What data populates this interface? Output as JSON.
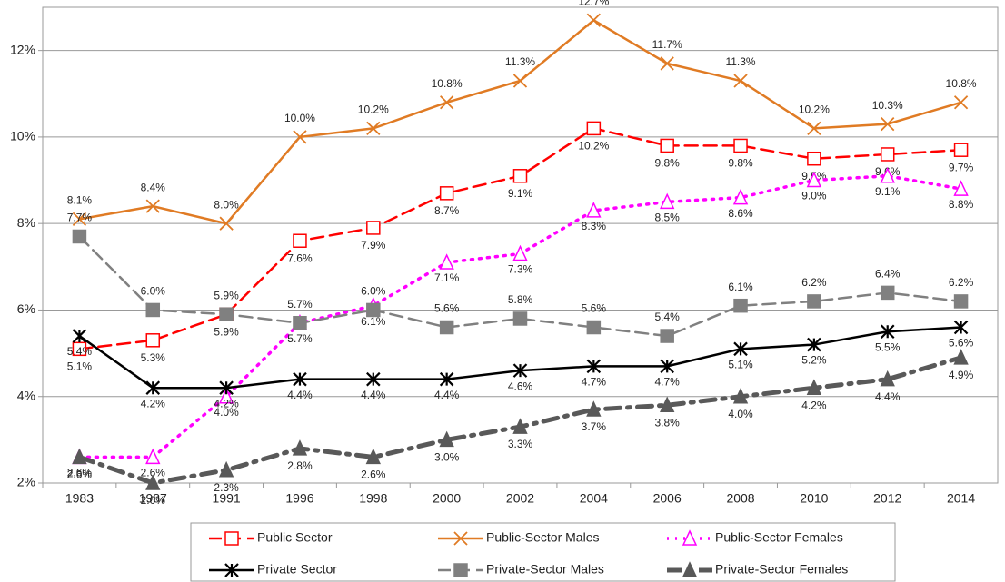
{
  "chart_data": {
    "type": "line",
    "categories": [
      "1983",
      "1987",
      "1991",
      "1996",
      "1998",
      "2000",
      "2002",
      "2004",
      "2006",
      "2008",
      "2010",
      "2012",
      "2014"
    ],
    "ylim": [
      2,
      13
    ],
    "yticks": [
      {
        "value": 2,
        "label": "2%"
      },
      {
        "value": 4,
        "label": "4%"
      },
      {
        "value": 6,
        "label": "6%"
      },
      {
        "value": 8,
        "label": "8%"
      },
      {
        "value": 10,
        "label": "10%"
      },
      {
        "value": 12,
        "label": "12%"
      }
    ],
    "grid": true,
    "legend": "bottom",
    "series": [
      {
        "name": "Public Sector",
        "color": "#ff0000",
        "line_style": "dashed",
        "marker": "open-square",
        "values": [
          5.1,
          5.3,
          5.9,
          7.6,
          7.9,
          8.7,
          9.1,
          10.2,
          9.8,
          9.8,
          9.5,
          9.6,
          9.7
        ],
        "value_labels": [
          "5.1%",
          "5.3%",
          "5.9%",
          "7.6%",
          "7.9%",
          "8.7%",
          "9.1%",
          "10.2%",
          "9.8%",
          "9.8%",
          "9.5%",
          "9.6%",
          "9.7%"
        ]
      },
      {
        "name": "Public-Sector Males",
        "color": "#e07b24",
        "line_style": "solid",
        "marker": "x",
        "values": [
          8.1,
          8.4,
          8.0,
          10.0,
          10.2,
          10.8,
          11.3,
          12.7,
          11.7,
          11.3,
          10.2,
          10.3,
          10.8
        ],
        "value_labels": [
          "8.1%",
          "8.4%",
          "8.0%",
          "10.0%",
          "10.2%",
          "10.8%",
          "11.3%",
          "12.7%",
          "11.7%",
          "11.3%",
          "10.2%",
          "10.3%",
          "10.8%"
        ]
      },
      {
        "name": "Public-Sector Females",
        "color": "#ff00ff",
        "line_style": "dotted",
        "marker": "open-triangle",
        "values": [
          2.6,
          2.6,
          4.0,
          5.7,
          6.1,
          7.1,
          7.3,
          8.3,
          8.5,
          8.6,
          9.0,
          9.1,
          8.8
        ],
        "value_labels": [
          "2.6%",
          "2.6%",
          "4.0%",
          "5.7%",
          "6.1%",
          "7.1%",
          "7.3%",
          "8.3%",
          "8.5%",
          "8.6%",
          "9.0%",
          "9.1%",
          "8.8%"
        ]
      },
      {
        "name": "Private Sector",
        "color": "#000000",
        "line_style": "solid",
        "marker": "asterisk",
        "values": [
          5.4,
          4.2,
          4.2,
          4.4,
          4.4,
          4.4,
          4.6,
          4.7,
          4.7,
          5.1,
          5.2,
          5.5,
          5.6
        ],
        "value_labels": [
          "5.4%",
          "4.2%",
          "4.2%",
          "4.4%",
          "4.4%",
          "4.4%",
          "4.6%",
          "4.7%",
          "4.7%",
          "5.1%",
          "5.2%",
          "5.5%",
          "5.6%"
        ]
      },
      {
        "name": "Private-Sector Males",
        "color": "#808080",
        "line_style": "dashed",
        "marker": "square",
        "values": [
          7.7,
          6.0,
          5.9,
          5.7,
          6.0,
          5.6,
          5.8,
          5.6,
          5.4,
          6.1,
          6.2,
          6.4,
          6.2
        ],
        "value_labels": [
          "7.7%",
          "6.0%",
          "5.9%",
          "5.7%",
          "6.0%",
          "5.6%",
          "5.8%",
          "5.6%",
          "5.4%",
          "6.1%",
          "6.2%",
          "6.4%",
          "6.2%"
        ]
      },
      {
        "name": "Private-Sector Females",
        "color": "#595959",
        "line_style": "dashdot",
        "marker": "triangle",
        "values": [
          2.6,
          2.0,
          2.3,
          2.8,
          2.6,
          3.0,
          3.3,
          3.7,
          3.8,
          4.0,
          4.2,
          4.4,
          4.9
        ],
        "value_labels": [
          "2.6%",
          "2.0%",
          "2.3%",
          "2.8%",
          "2.6%",
          "3.0%",
          "3.3%",
          "3.7%",
          "3.8%",
          "4.0%",
          "4.2%",
          "4.4%",
          "4.9%"
        ]
      }
    ]
  }
}
